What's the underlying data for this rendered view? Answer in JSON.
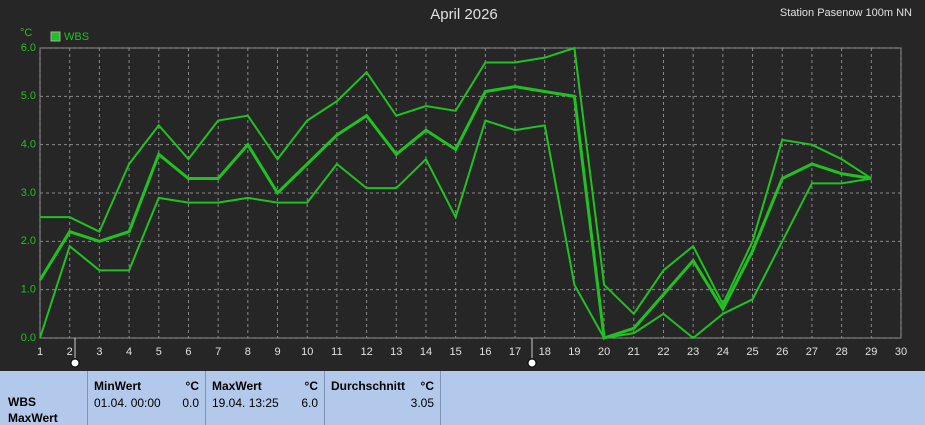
{
  "chart_data": {
    "type": "line",
    "title": "April 2026",
    "station": "Station Pasenow 100m NN",
    "y_unit": "°C",
    "x": [
      1,
      2,
      3,
      4,
      5,
      6,
      7,
      8,
      9,
      10,
      11,
      12,
      13,
      14,
      15,
      16,
      17,
      18,
      19,
      20,
      21,
      22,
      23,
      24,
      25,
      26,
      27,
      28,
      29,
      30
    ],
    "xlim": [
      1,
      30
    ],
    "xticks": [
      1,
      2,
      3,
      4,
      5,
      6,
      7,
      8,
      9,
      10,
      11,
      12,
      13,
      14,
      15,
      16,
      17,
      18,
      19,
      20,
      21,
      22,
      23,
      24,
      25,
      26,
      27,
      28,
      29,
      30
    ],
    "ylim": [
      0,
      6
    ],
    "yticks": [
      {
        "value": 0,
        "label": "0.0"
      },
      {
        "value": 1,
        "label": "1.0"
      },
      {
        "value": 2,
        "label": "2.0"
      },
      {
        "value": 3,
        "label": "3.0"
      },
      {
        "value": 4,
        "label": "4.0"
      },
      {
        "value": 5,
        "label": "5.0"
      },
      {
        "value": 6,
        "label": "6.0"
      }
    ],
    "grid": true,
    "legend": "top-left",
    "series": [
      {
        "name": "WBS",
        "color": "#1fc21f",
        "values": [
          1.2,
          2.2,
          2.0,
          2.2,
          3.8,
          3.3,
          3.3,
          4.0,
          3.0,
          3.6,
          4.2,
          4.6,
          3.8,
          4.3,
          3.9,
          5.1,
          5.2,
          5.1,
          5.0,
          0.0,
          0.2,
          0.9,
          1.6,
          0.6,
          1.8,
          3.3,
          3.6,
          3.4,
          3.3,
          null
        ]
      },
      {
        "color": "#1fc21f",
        "values": [
          2.5,
          2.5,
          2.2,
          3.6,
          4.4,
          3.7,
          4.5,
          4.6,
          3.7,
          4.5,
          4.9,
          5.5,
          4.6,
          4.8,
          4.7,
          5.7,
          5.7,
          5.8,
          6.0,
          1.1,
          0.5,
          1.4,
          1.9,
          0.7,
          2.0,
          4.1,
          4.0,
          3.7,
          3.3,
          null
        ]
      },
      {
        "color": "#1fc21f",
        "values": [
          0.0,
          1.9,
          1.4,
          1.4,
          2.9,
          2.8,
          2.8,
          2.9,
          2.8,
          2.8,
          3.6,
          3.1,
          3.1,
          3.7,
          2.5,
          4.5,
          4.3,
          4.4,
          1.1,
          0.0,
          0.1,
          0.5,
          0.0,
          0.5,
          0.8,
          2.0,
          3.2,
          3.2,
          3.3,
          null
        ]
      }
    ]
  },
  "stats": {
    "label": [
      "WBS",
      "MaxWert"
    ],
    "min": {
      "title": "MinWert",
      "unit": "°C",
      "time": "01.04.  00:00",
      "value": "0.0"
    },
    "max": {
      "title": "MaxWert",
      "unit": "°C",
      "time": "19.04.  13:25",
      "value": "6.0"
    },
    "avg": {
      "title": "Durchschnitt",
      "unit": "°C",
      "value": "3.05"
    }
  }
}
